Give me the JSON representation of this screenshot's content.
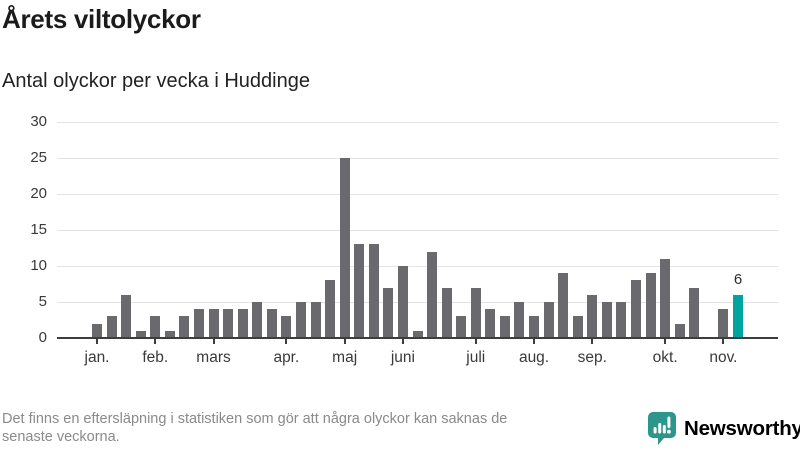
{
  "chart_data": {
    "type": "bar",
    "title": "Årets viltolyckor",
    "subtitle": "Antal olyckor per vecka i Huddinge",
    "x_unit": "vecka",
    "values": [
      2,
      3,
      6,
      1,
      3,
      1,
      3,
      4,
      4,
      4,
      4,
      5,
      4,
      3,
      5,
      5,
      8,
      25,
      13,
      13,
      7,
      10,
      1,
      12,
      7,
      3,
      7,
      4,
      3,
      5,
      3,
      5,
      9,
      3,
      6,
      5,
      5,
      8,
      9,
      11,
      2,
      7,
      0,
      4,
      6
    ],
    "ylim": [
      0,
      30
    ],
    "yticks": [
      0,
      5,
      10,
      15,
      20,
      25,
      30
    ],
    "month_ticks": [
      {
        "index": 0,
        "label": "jan."
      },
      {
        "index": 4,
        "label": "feb."
      },
      {
        "index": 8,
        "label": "mars"
      },
      {
        "index": 13,
        "label": "apr."
      },
      {
        "index": 17,
        "label": "maj"
      },
      {
        "index": 21,
        "label": "juni"
      },
      {
        "index": 26,
        "label": "juli"
      },
      {
        "index": 30,
        "label": "aug."
      },
      {
        "index": 34,
        "label": "sep."
      },
      {
        "index": 39,
        "label": "okt."
      },
      {
        "index": 43,
        "label": "nov."
      }
    ],
    "highlight": {
      "index": 44,
      "value": 6,
      "label": "6"
    },
    "colors": {
      "bar": "#6a6a6e",
      "highlight": "#00a49e",
      "axis": "#3d3d3d",
      "grid": "#e4e4e4"
    },
    "grid": "horizontal",
    "legend": "none"
  },
  "footer": {
    "note_lines": [
      "Det finns en eftersläpning i statistiken som gör att några olyckor kan saknas de",
      "senaste veckorna."
    ],
    "brand": {
      "name": "Newsworthy",
      "color": "#2d968b"
    }
  }
}
